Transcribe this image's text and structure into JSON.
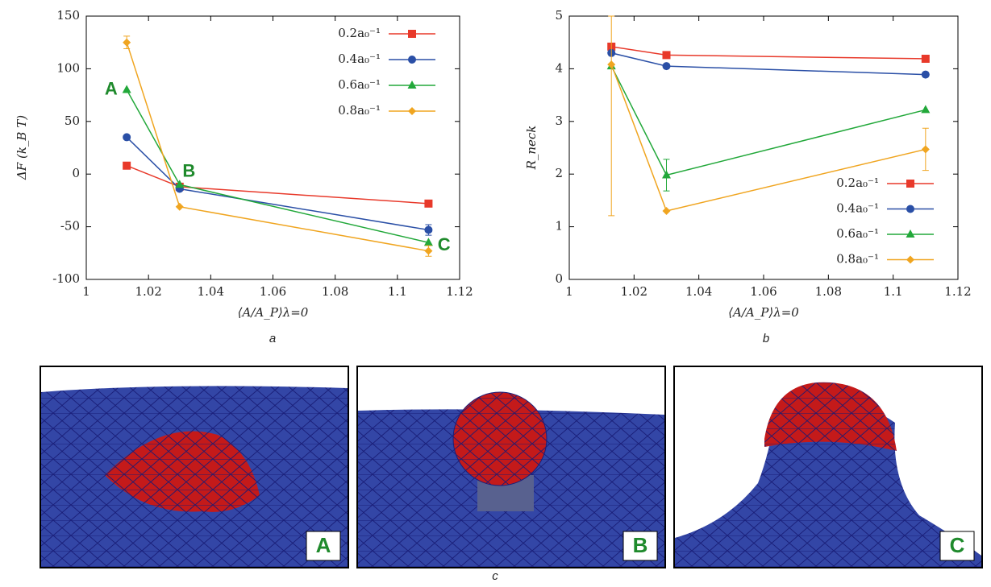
{
  "chart_data": [
    {
      "type": "line",
      "x_label": "⟨A/A_P⟩λ=0",
      "y_label": "ΔF (k_B T)",
      "caption": "a",
      "x": [
        1.013,
        1.03,
        1.11
      ],
      "xlim": [
        1,
        1.12
      ],
      "xticks": [
        1,
        1.02,
        1.04,
        1.06,
        1.08,
        1.1,
        1.12
      ],
      "ylim": [
        -100,
        150
      ],
      "yticks": [
        -100,
        -50,
        0,
        50,
        100,
        150
      ],
      "legend": "upper right",
      "annotations": [
        "A",
        "B",
        "C"
      ],
      "series": [
        {
          "name": "0.2a₀⁻¹",
          "color": "#e8392a",
          "values": [
            8,
            -12,
            -28
          ]
        },
        {
          "name": "0.4a₀⁻¹",
          "color": "#2a4fa6",
          "values": [
            35,
            -14,
            -53
          ],
          "errors": [
            null,
            null,
            5
          ]
        },
        {
          "name": "0.6a₀⁻¹",
          "color": "#22a83a",
          "values": [
            80,
            -10,
            -65
          ]
        },
        {
          "name": "0.8a₀⁻¹",
          "color": "#f0a520",
          "values": [
            125,
            -31,
            -73
          ],
          "errors": [
            6,
            null,
            5
          ]
        }
      ]
    },
    {
      "type": "line",
      "x_label": "⟨A/A_P⟩λ=0",
      "y_label": "R_neck",
      "caption": "b",
      "x": [
        1.013,
        1.03,
        1.11
      ],
      "xlim": [
        1,
        1.12
      ],
      "xticks": [
        1,
        1.02,
        1.04,
        1.06,
        1.08,
        1.1,
        1.12
      ],
      "ylim": [
        0,
        5
      ],
      "yticks": [
        0,
        1,
        2,
        3,
        4,
        5
      ],
      "legend": "lower right",
      "series": [
        {
          "name": "0.2a₀⁻¹",
          "color": "#e8392a",
          "values": [
            4.42,
            4.26,
            4.19
          ]
        },
        {
          "name": "0.4a₀⁻¹",
          "color": "#2a4fa6",
          "values": [
            4.3,
            4.05,
            3.89
          ]
        },
        {
          "name": "0.6a₀⁻¹",
          "color": "#22a83a",
          "values": [
            4.05,
            1.98,
            3.22
          ],
          "errors": [
            null,
            0.3,
            null
          ]
        },
        {
          "name": "0.8a₀⁻¹",
          "color": "#f0a520",
          "values": [
            4.08,
            1.3,
            2.47
          ],
          "errors": [
            2.87,
            null,
            0.4
          ]
        }
      ]
    }
  ],
  "panels": {
    "labels": [
      "A",
      "B",
      "C"
    ],
    "caption": "c"
  }
}
